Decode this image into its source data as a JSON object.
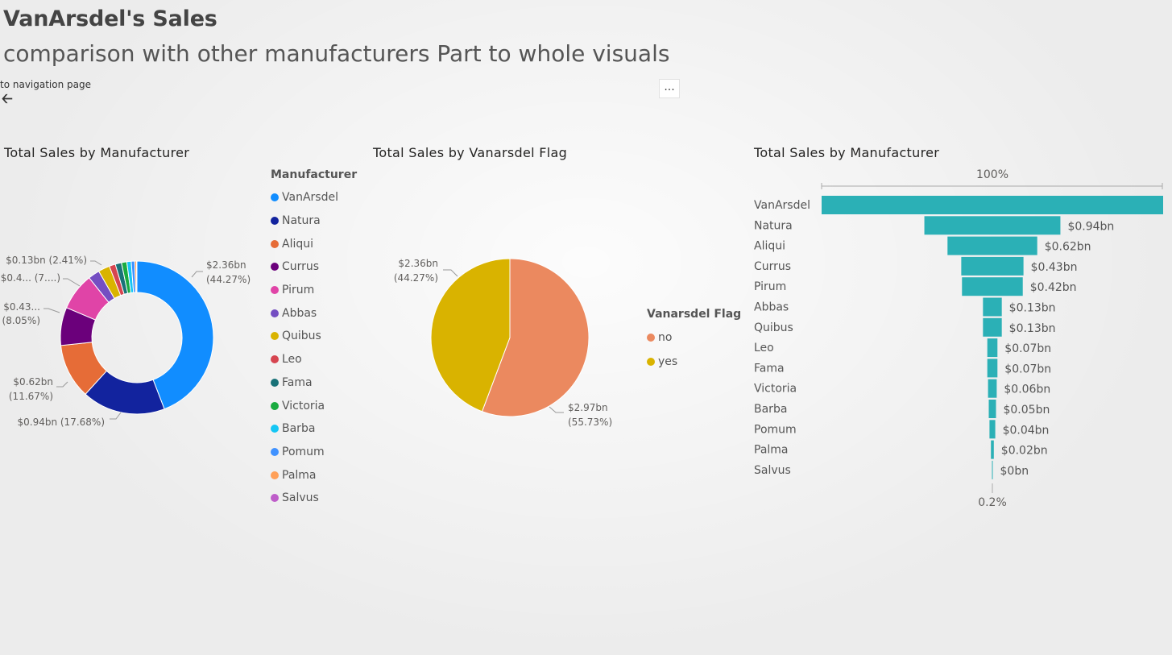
{
  "header": {
    "title": "VanArsdel's Sales",
    "subtitle": "comparison with other manufacturers Part to whole visuals",
    "back_text": "to navigation page",
    "more_label": "..."
  },
  "chart_data": [
    {
      "type": "pie",
      "variant": "donut",
      "title": "Total Sales by Manufacturer",
      "legend_title": "Manufacturer",
      "legend_position": "right",
      "categories": [
        "VanArsdel",
        "Natura",
        "Aliqui",
        "Currus",
        "Pirum",
        "Abbas",
        "Quibus",
        "Leo",
        "Fama",
        "Victoria",
        "Barba",
        "Pomum",
        "Palma",
        "Salvus"
      ],
      "values": [
        2.36,
        0.94,
        0.62,
        0.43,
        0.42,
        0.13,
        0.13,
        0.07,
        0.07,
        0.06,
        0.05,
        0.04,
        0.02,
        0.004
      ],
      "colors": [
        "#118DFF",
        "#12239E",
        "#E66C37",
        "#6B007B",
        "#E044A7",
        "#744EC2",
        "#D9B300",
        "#D64550",
        "#197278",
        "#1AAB40",
        "#15C6F4",
        "#4092FF",
        "#FFA058",
        "#BE5DC9"
      ],
      "data_labels": [
        {
          "index": 0,
          "line1": "$2.36bn",
          "line2": "(44.27%)"
        },
        {
          "index": 1,
          "line1": "$0.94bn (17.68%)",
          "line2": ""
        },
        {
          "index": 2,
          "line1": "$0.62bn",
          "line2": "(11.67%)"
        },
        {
          "index": 3,
          "line1": "$0.43...",
          "line2": "(8.05%)"
        },
        {
          "index": 4,
          "line1": "$0.4... (7....)",
          "line2": ""
        },
        {
          "index": 5,
          "line1": "$0.13bn (2.41%)",
          "line2": ""
        }
      ]
    },
    {
      "type": "pie",
      "title": "Total Sales by Vanarsdel Flag",
      "legend_title": "Vanarsdel Flag",
      "legend_position": "right",
      "categories": [
        "no",
        "yes"
      ],
      "values": [
        2.97,
        2.36
      ],
      "percents": [
        55.73,
        44.27
      ],
      "colors": [
        "#EB895F",
        "#D9B300"
      ],
      "data_labels": [
        {
          "index": 0,
          "line1": "$2.97bn",
          "line2": "(55.73%)"
        },
        {
          "index": 1,
          "line1": "$2.36bn",
          "line2": "(44.27%)"
        }
      ]
    },
    {
      "type": "bar",
      "variant": "funnel",
      "title": "Total Sales by Manufacturer",
      "categories": [
        "VanArsdel",
        "Natura",
        "Aliqui",
        "Currus",
        "Pirum",
        "Abbas",
        "Quibus",
        "Leo",
        "Fama",
        "Victoria",
        "Barba",
        "Pomum",
        "Palma",
        "Salvus"
      ],
      "values": [
        2.36,
        0.94,
        0.62,
        0.43,
        0.42,
        0.13,
        0.13,
        0.07,
        0.07,
        0.06,
        0.05,
        0.04,
        0.02,
        0.004
      ],
      "labels": [
        "",
        "$0.94bn",
        "$0.62bn",
        "$0.43bn",
        "$0.42bn",
        "$0.13bn",
        "$0.13bn",
        "$0.07bn",
        "$0.07bn",
        "$0.06bn",
        "$0.05bn",
        "$0.04bn",
        "$0.02bn",
        "$0bn"
      ],
      "top_label": "100%",
      "bottom_label": "0.2%",
      "color": "#2BB0B6"
    }
  ]
}
